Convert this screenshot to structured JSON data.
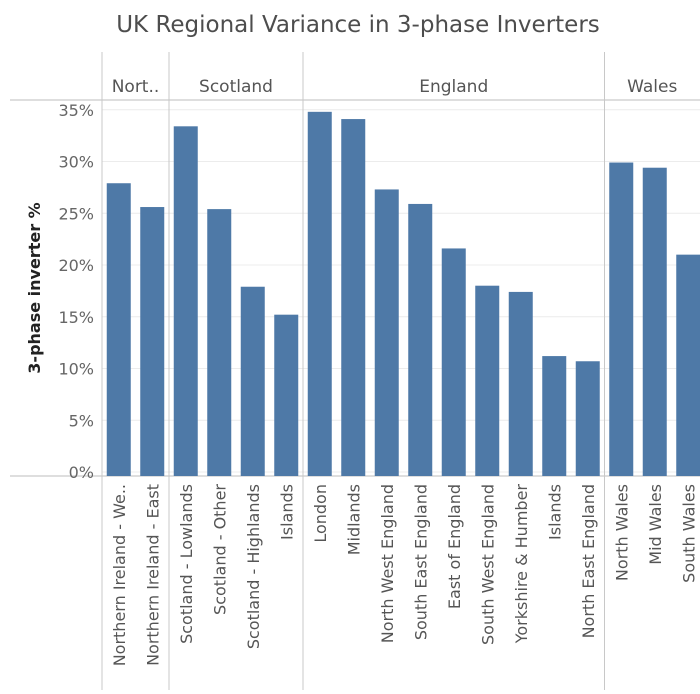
{
  "chart_data": {
    "type": "bar",
    "title": "UK Regional Variance in 3-phase Inverters",
    "ylabel": "3-phase inverter %",
    "xlabel": "",
    "ylim": [
      0,
      35
    ],
    "yticks": [
      0,
      5,
      10,
      15,
      20,
      25,
      30,
      35
    ],
    "ytick_labels": [
      "0%",
      "5%",
      "10%",
      "15%",
      "20%",
      "25%",
      "30%",
      "35%"
    ],
    "grid": true,
    "color": "#4e79a7",
    "groups": [
      {
        "name": "Nort..",
        "categories": [
          "Northern Ireland - We..",
          "Northern Ireland - East"
        ],
        "values": [
          27.9,
          25.6
        ]
      },
      {
        "name": "Scotland",
        "categories": [
          "Scotland - Lowlands",
          "Scotland - Other",
          "Scotland - Highlands",
          "Islands"
        ],
        "values": [
          33.4,
          25.4,
          17.9,
          15.2
        ]
      },
      {
        "name": "England",
        "categories": [
          "London",
          "Midlands",
          "North West England",
          "South East England",
          "East of England",
          "South West England",
          "Yorkshire & Humber",
          "Islands",
          "North East England"
        ],
        "values": [
          34.8,
          34.1,
          27.3,
          25.9,
          21.6,
          18.0,
          17.4,
          11.2,
          10.7
        ]
      },
      {
        "name": "Wales",
        "categories": [
          "North Wales",
          "Mid Wales",
          "South Wales"
        ],
        "values": [
          29.9,
          29.4,
          21.0
        ]
      }
    ]
  }
}
